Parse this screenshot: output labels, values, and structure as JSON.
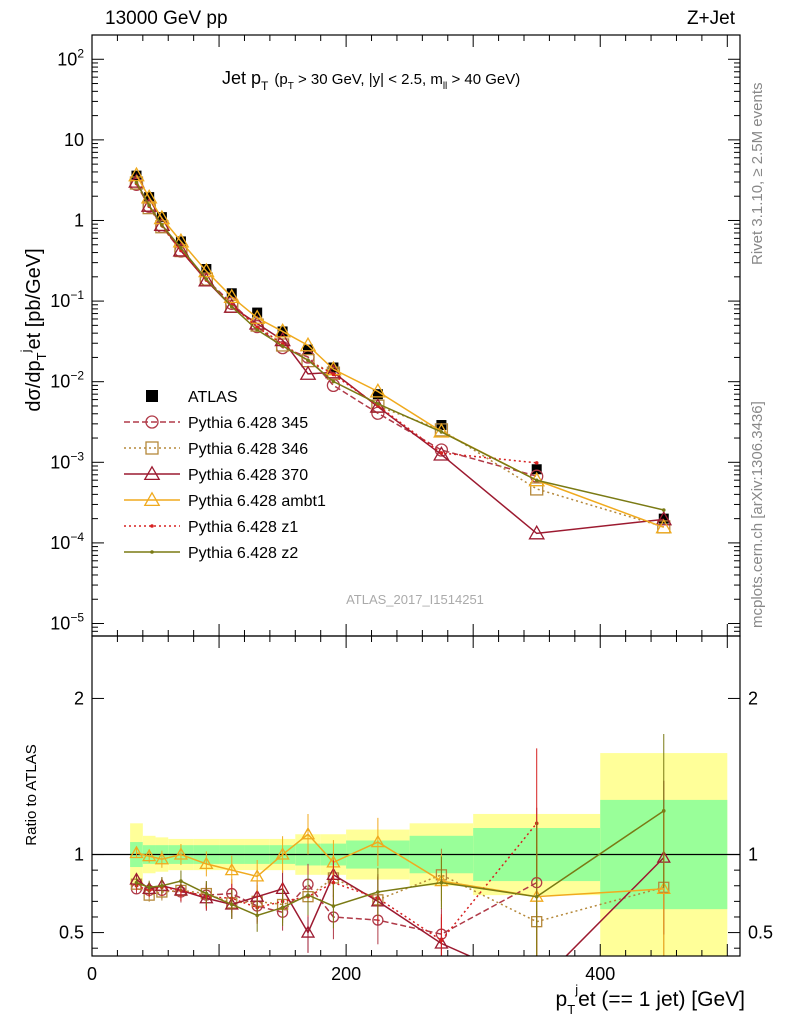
{
  "header": {
    "left": "13000 GeV pp",
    "right": "Z+Jet"
  },
  "side": {
    "rivet": "Rivet 3.1.10, ≥ 2.5M events",
    "mcplots": "mcplots.cern.ch [arXiv:1306.3436]"
  },
  "chart_data": {
    "type": "scatter",
    "title_main": "Jet p",
    "title_sub": "T",
    "title_cond": "(p",
    "title_cond2": " > 30 GeV, |y| < 2.5, m",
    "title_cond3": "ll",
    "title_cond4": " > 40 GeV)",
    "ylabel": "dσ/dp",
    "ylabel_sub": "T",
    "ylabel_sup": "j",
    "ylabel_rest": "et [pb/GeV]",
    "ratio_ylabel": "Ratio to ATLAS",
    "xlabel": "p",
    "xlabel_sub": "T",
    "xlabel_sup": "j",
    "xlabel_rest": "et (== 1 jet) [GeV]",
    "watermark": "ATLAS_2017_I1514251",
    "x_ticks": [
      "0",
      "200",
      "400"
    ],
    "y_ticks": [
      "10^-5",
      "10^-4",
      "10^-3",
      "10^-2",
      "10^-1",
      "1",
      "10",
      "10^2"
    ],
    "ratio_ticks": [
      "0.5",
      "1",
      "2"
    ],
    "xlim": [
      0,
      510
    ],
    "ylim": [
      7e-06,
      200.0
    ],
    "ratio_ylim": [
      0.35,
      2.4
    ],
    "x": [
      35,
      45,
      55,
      70,
      90,
      110,
      130,
      150,
      170,
      190,
      225,
      275,
      350,
      450
    ],
    "bins": [
      [
        30,
        40
      ],
      [
        40,
        50
      ],
      [
        50,
        60
      ],
      [
        60,
        80
      ],
      [
        80,
        100
      ],
      [
        100,
        120
      ],
      [
        120,
        140
      ],
      [
        140,
        160
      ],
      [
        160,
        180
      ],
      [
        180,
        200
      ],
      [
        200,
        250
      ],
      [
        250,
        300
      ],
      [
        300,
        400
      ],
      [
        400,
        500
      ]
    ],
    "atlas": [
      3.6,
      1.95,
      1.1,
      0.55,
      0.25,
      0.125,
      0.072,
      0.042,
      0.025,
      0.015,
      0.007,
      0.0029,
      0.00082,
      0.0002
    ],
    "band_green": [
      0.08,
      0.06,
      0.06,
      0.06,
      0.06,
      0.06,
      0.06,
      0.06,
      0.07,
      0.07,
      0.09,
      0.12,
      0.17,
      0.35
    ],
    "band_yellow": [
      0.2,
      0.12,
      0.11,
      0.1,
      0.1,
      0.1,
      0.1,
      0.1,
      0.13,
      0.13,
      0.16,
      0.2,
      0.26,
      0.65
    ],
    "series": [
      {
        "name": "ATLAS",
        "color": "#000000",
        "marker": "square",
        "ratio": [
          1,
          1,
          1,
          1,
          1,
          1,
          1,
          1,
          1,
          1,
          1,
          1,
          1,
          1
        ]
      },
      {
        "name": "Pythia 6.428 345",
        "color": "#b03a48",
        "marker": "circle",
        "dash": "6,3",
        "ratio": [
          0.78,
          0.77,
          0.77,
          0.76,
          0.74,
          0.75,
          0.67,
          0.63,
          0.81,
          0.6,
          0.58,
          0.49,
          0.82,
          null
        ]
      },
      {
        "name": "Pythia 6.428 346",
        "color": "#b5883a",
        "marker": "square-open",
        "dash": "2,3",
        "ratio": [
          0.81,
          0.74,
          0.76,
          0.77,
          0.75,
          0.69,
          0.7,
          0.68,
          0.73,
          0.85,
          0.71,
          0.87,
          0.57,
          0.79
        ]
      },
      {
        "name": "Pythia 6.428 370",
        "color": "#9c1a30",
        "marker": "triangle-open",
        "ratio": [
          0.84,
          0.78,
          0.8,
          0.77,
          0.72,
          0.68,
          0.73,
          0.78,
          0.5,
          0.87,
          0.7,
          0.43,
          0.16,
          0.98
        ]
      },
      {
        "name": "Pythia 6.428 ambt1",
        "color": "#f0aa1e",
        "marker": "triangle-open",
        "ratio": [
          1.01,
          0.99,
          0.97,
          1.0,
          0.94,
          0.9,
          0.86,
          1.0,
          1.13,
          0.95,
          1.08,
          0.83,
          0.73,
          0.78
        ]
      },
      {
        "name": "Pythia 6.428 z1",
        "color": "#d62020",
        "marker": "dot",
        "dash": "2,3",
        "ratio": [
          0.8,
          0.77,
          0.79,
          0.77,
          0.73,
          0.72,
          0.66,
          0.7,
          0.73,
          0.82,
          0.72,
          0.45,
          1.2,
          null
        ]
      },
      {
        "name": "Pythia 6.428 z2",
        "color": "#7a7a14",
        "marker": "dot",
        "ratio": [
          0.82,
          0.79,
          0.8,
          0.83,
          0.75,
          0.68,
          0.61,
          0.66,
          0.74,
          0.67,
          0.76,
          0.82,
          0.73,
          1.28
        ]
      }
    ]
  }
}
